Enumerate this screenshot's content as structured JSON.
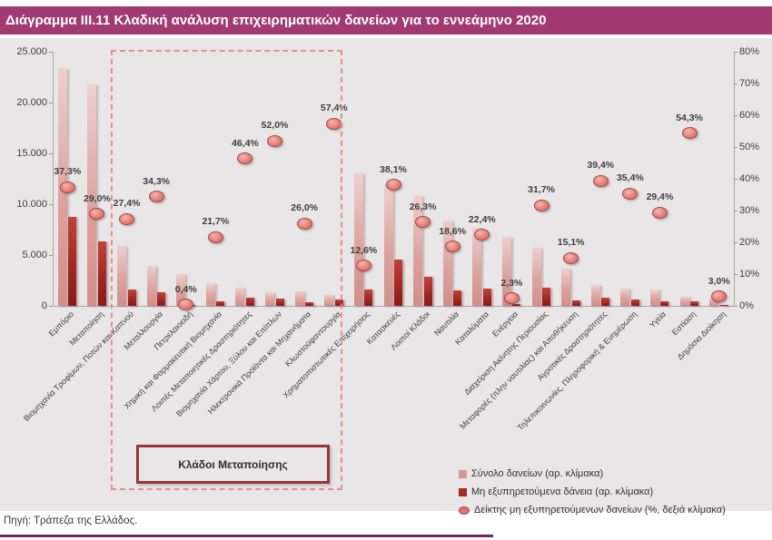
{
  "title": "Διάγραμμα III.11 Κλαδική ανάλυση επιχειρηματικών δανείων για το εννεάμηνο 2020",
  "source_note": "Πηγή: Τράπεζα της Ελλάδος.",
  "annotation_box": {
    "label": "Κλάδοι Μεταποίησης"
  },
  "legend": {
    "items": [
      {
        "label": "Σύνολο δανείων (αρ. κλίμακα)",
        "swatch": "light-pink-square",
        "color": "#d99694"
      },
      {
        "label": "Μη εξυπηρετούμενα δάνεια (αρ. κλίμακα)",
        "swatch": "dark-red-square",
        "color": "#a42a24"
      },
      {
        "label": "Δείκτης μη εξυπηρετούμενων δανείων (%, δεξιά κλίμακα)",
        "swatch": "pink-ellipse",
        "color": "#e4726c"
      }
    ]
  },
  "colors": {
    "title_bar_bg": "#a23a72",
    "figure_bg": "#e8e6e7",
    "total_bar": "#d99694",
    "npl_bar": "#a02620",
    "marker_fill": "#e4726c",
    "marker_border": "#96423c",
    "dashed_box": "#e59090",
    "annotation_border": "#953735",
    "footer_rule": "#6e2a52",
    "text": "#3f3f3f"
  },
  "chart_data": {
    "type": "bar",
    "title": "Κλαδική ανάλυση επιχειρηματικών δανείων για το εννεάμηνο 2020",
    "grid": false,
    "legend_position": "bottom-right",
    "categories": [
      "Εμπόριο",
      "Μεταποίηση",
      "Βιομηχανία Τροφίμων, Ποτών και Καπνού",
      "Μεταλλουργία",
      "Πετρελαιοειδή",
      "Χημική και Φαρμακευτική Βιομηχανία",
      "Λοιπές Μεταποιητικές Δραστηριότητες",
      "Βιομηχανία Χάρτου, Ξύλου και Επίπλων",
      "Ηλεκτρονικά Προϊόντα και Μηχανήματα",
      "Κλωστοϋφαντουργία",
      "Χρηματοπιστωτικές Επιχειρήσεις",
      "Κατασκευές",
      "Λοιποί Κλάδοι",
      "Ναυτιλία",
      "Καταλύματα",
      "Ενέργεια",
      "Διαχείριση Ακίνητης Περιουσίας",
      "Μεταφορές (πλην ναυτιλίας) και Αποθήκευση",
      "Αγροτικές Δραστηριότητες",
      "Τηλεπικοινωνίες, Πληροφορική & Ενημέρωση",
      "Υγεία",
      "Εστίαση",
      "Δημόσια Διοίκηση"
    ],
    "series": [
      {
        "name": "Σύνολο δανείων (αρ. κλίμακα)",
        "type": "bar",
        "axis": "left",
        "values": [
          23400,
          21800,
          5900,
          3900,
          3100,
          2250,
          1750,
          1350,
          1450,
          1100,
          13000,
          12000,
          10800,
          8400,
          7700,
          6800,
          5700,
          3700,
          2050,
          1700,
          1650,
          900,
          800
        ]
      },
      {
        "name": "Μη εξυπηρετούμενα δάνεια (αρ. κλίμακα)",
        "type": "bar",
        "axis": "left",
        "values": [
          8730,
          6320,
          1620,
          1340,
          12,
          490,
          810,
          700,
          375,
          630,
          1640,
          4570,
          2840,
          1560,
          1720,
          160,
          1810,
          560,
          810,
          600,
          485,
          490,
          25
        ]
      },
      {
        "name": "Δείκτης μη εξυπηρετούμενων δανείων (%, δεξιά κλίμακα)",
        "type": "scatter",
        "axis": "right",
        "values": [
          37.3,
          29.0,
          27.4,
          34.3,
          0.4,
          21.7,
          46.4,
          52.0,
          26.0,
          57.4,
          12.6,
          38.1,
          26.3,
          18.6,
          22.4,
          2.3,
          31.7,
          15.1,
          39.4,
          35.4,
          29.4,
          54.3,
          3.0
        ],
        "point_labels": [
          "37,3%",
          "29,0%",
          "27,4%",
          "34,3%",
          "0,4%",
          "21,7%",
          "46,4%",
          "52,0%",
          "26,0%",
          "57,4%",
          "12,6%",
          "38,1%",
          "26,3%",
          "18,6%",
          "22,4%",
          "2,3%",
          "31,7%",
          "15,1%",
          "39,4%",
          "35,4%",
          "29,4%",
          "54,3%",
          "3,0%"
        ]
      }
    ],
    "left_axis": {
      "min": 0,
      "max": 25000,
      "tick_step": 5000,
      "tick_labels": [
        "0",
        "5.000",
        "10.000",
        "15.000",
        "20.000",
        "25.000"
      ]
    },
    "right_axis": {
      "min": 0,
      "max": 80,
      "tick_step": 10,
      "tick_labels": [
        "0%",
        "10%",
        "20%",
        "30%",
        "40%",
        "50%",
        "60%",
        "70%",
        "80%"
      ]
    },
    "manufacturing_box_category_range": [
      "Βιομηχανία Τροφίμων, Ποτών και Καπνού",
      "Κλωστοϋφαντουργία"
    ]
  }
}
